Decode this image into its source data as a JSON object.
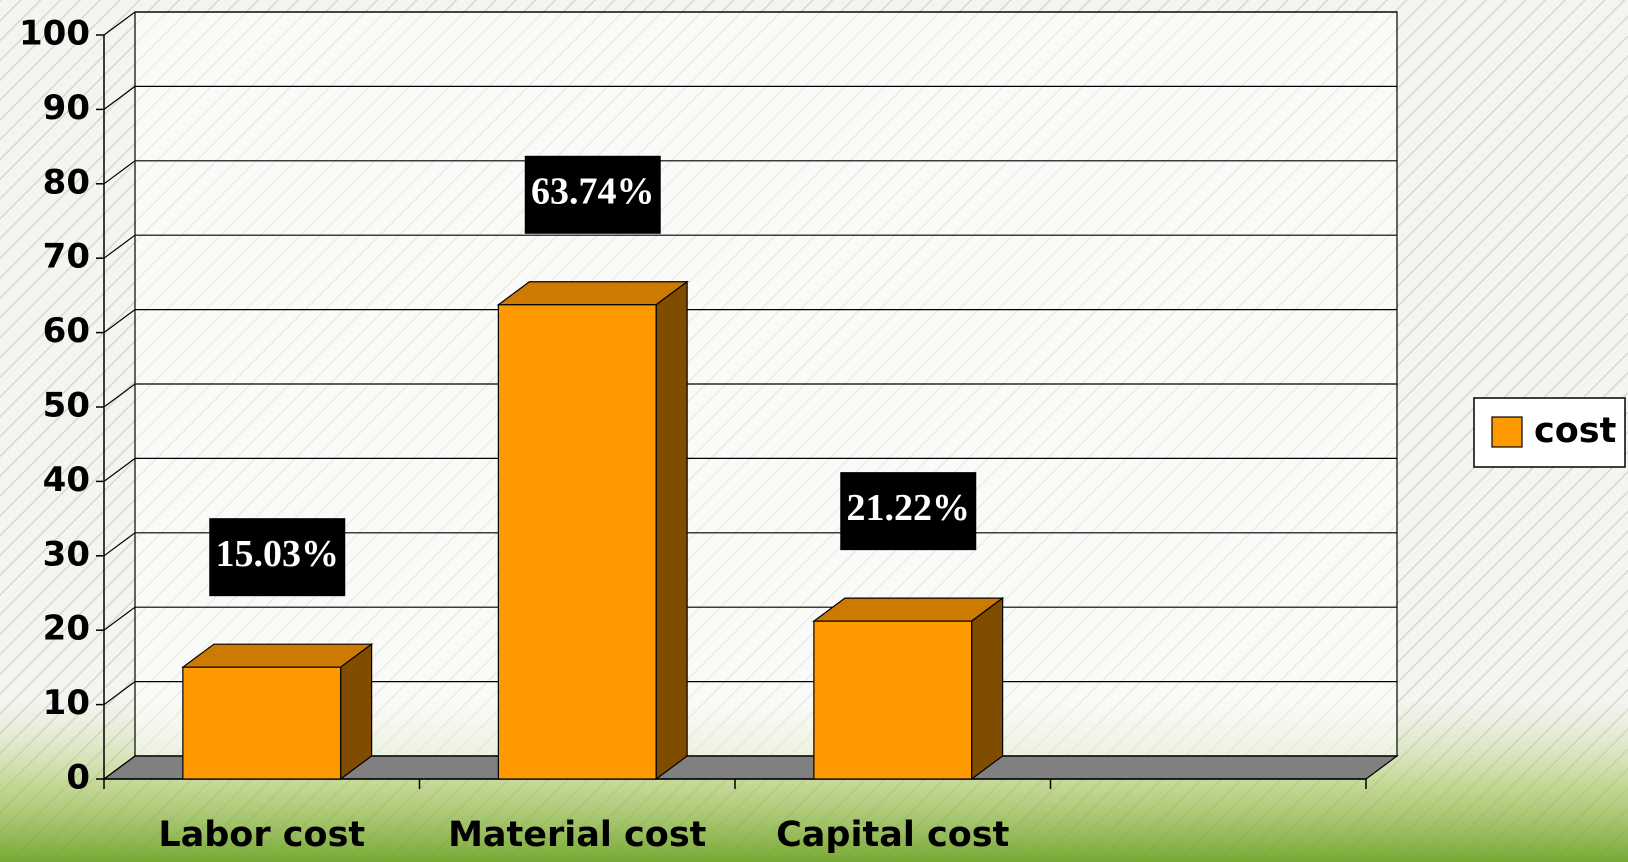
{
  "chart_data": {
    "type": "bar3d",
    "categories": [
      "Labor cost",
      "Material cost",
      "Capital cost",
      null
    ],
    "series": [
      {
        "name": "cost",
        "color": "#ff9900",
        "values": [
          15.03,
          63.74,
          21.22,
          null
        ],
        "value_labels": [
          "15.03%",
          "63.74%",
          "21.22%",
          null
        ]
      }
    ],
    "ylim": [
      0,
      100
    ],
    "yticks": [
      0,
      10,
      20,
      30,
      40,
      50,
      60,
      70,
      80,
      90,
      100
    ],
    "grid": true,
    "legend": "right"
  }
}
